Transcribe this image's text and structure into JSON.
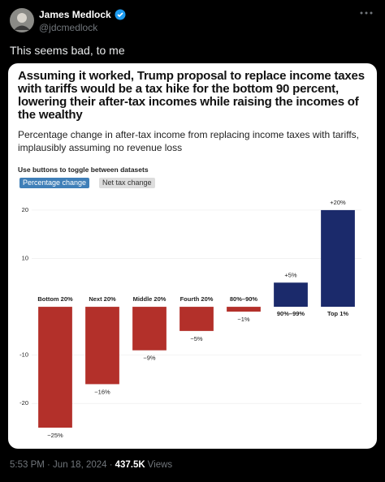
{
  "tweet": {
    "author_name": "James Medlock",
    "author_handle": "@jdcmedlock",
    "text": "This seems bad, to me"
  },
  "chart_data": {
    "type": "bar",
    "title": "Assuming it worked, Trump proposal to replace income taxes with tariffs would be a tax hike for the bottom 90 percent, lowering their after-tax incomes while raising the incomes of the wealthy",
    "subtitle": "Percentage change in after-tax income from replacing income taxes with tariffs, implausibly assuming no revenue loss",
    "toggle_note": "Use buttons to toggle between datasets",
    "buttons": [
      "Percentage change",
      "Net tax change"
    ],
    "categories": [
      "Bottom 20%",
      "Next 20%",
      "Middle 20%",
      "Fourth 20%",
      "80%–90%",
      "90%–99%",
      "Top 1%"
    ],
    "values": [
      -25,
      -16,
      -9,
      -5,
      -1,
      5,
      20
    ],
    "value_labels": [
      "−25%",
      "−16%",
      "−9%",
      "−5%",
      "−1%",
      "+5%",
      "+20%"
    ],
    "colors": [
      "#b3302a",
      "#b3302a",
      "#b3302a",
      "#b3302a",
      "#b3302a",
      "#1b2a6b",
      "#1b2a6b"
    ],
    "ylim": [
      -26,
      22
    ],
    "yticks": [
      -20,
      -10,
      10,
      20
    ],
    "grid": true
  },
  "footer": {
    "timestamp": "5:53 PM · Jun 18, 2024 ·",
    "views_count": "437.5K",
    "views_label": "Views"
  }
}
